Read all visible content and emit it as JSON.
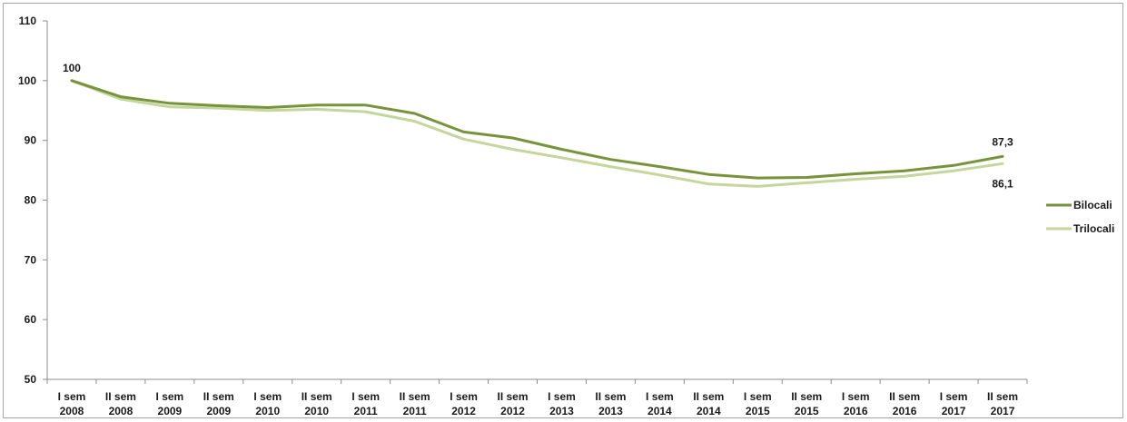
{
  "chart_data": {
    "type": "line",
    "categories": [
      [
        "I sem",
        "2008"
      ],
      [
        "II sem",
        "2008"
      ],
      [
        "I sem",
        "2009"
      ],
      [
        "II sem",
        "2009"
      ],
      [
        "I sem",
        "2010"
      ],
      [
        "II sem",
        "2010"
      ],
      [
        "I sem",
        "2011"
      ],
      [
        "II sem",
        "2011"
      ],
      [
        "I sem",
        "2012"
      ],
      [
        "II sem",
        "2012"
      ],
      [
        "I sem",
        "2013"
      ],
      [
        "II sem",
        "2013"
      ],
      [
        "I sem",
        "2014"
      ],
      [
        "II sem",
        "2014"
      ],
      [
        "I sem",
        "2015"
      ],
      [
        "II sem",
        "2015"
      ],
      [
        "I sem",
        "2016"
      ],
      [
        "II sem",
        "2016"
      ],
      [
        "I sem",
        "2017"
      ],
      [
        "II sem",
        "2017"
      ]
    ],
    "ylim": [
      50,
      110
    ],
    "yticks": [
      50,
      60,
      70,
      80,
      90,
      100,
      110
    ],
    "series": [
      {
        "name": "Bilocali",
        "color": "#77933c",
        "values": [
          100,
          97.3,
          96.2,
          95.8,
          95.5,
          95.9,
          95.9,
          94.5,
          91.4,
          90.4,
          88.5,
          86.8,
          85.6,
          84.3,
          83.7,
          83.8,
          84.4,
          84.9,
          85.8,
          87.3
        ]
      },
      {
        "name": "Trilocali",
        "color": "#c3d69b",
        "values": [
          100,
          96.9,
          95.6,
          95.4,
          95.0,
          95.2,
          94.8,
          93.2,
          90.2,
          88.5,
          87.1,
          85.6,
          84.2,
          82.7,
          82.3,
          82.9,
          83.5,
          84.0,
          84.9,
          86.1
        ]
      }
    ],
    "annotations": [
      {
        "text": "100",
        "series": 0,
        "index": 0
      },
      {
        "text": "87,3",
        "series": 0,
        "index": 19
      },
      {
        "text": "86,1",
        "series": 1,
        "index": 19
      }
    ],
    "legend_position": "right",
    "grid": false,
    "title": "",
    "xlabel": "",
    "ylabel": ""
  }
}
